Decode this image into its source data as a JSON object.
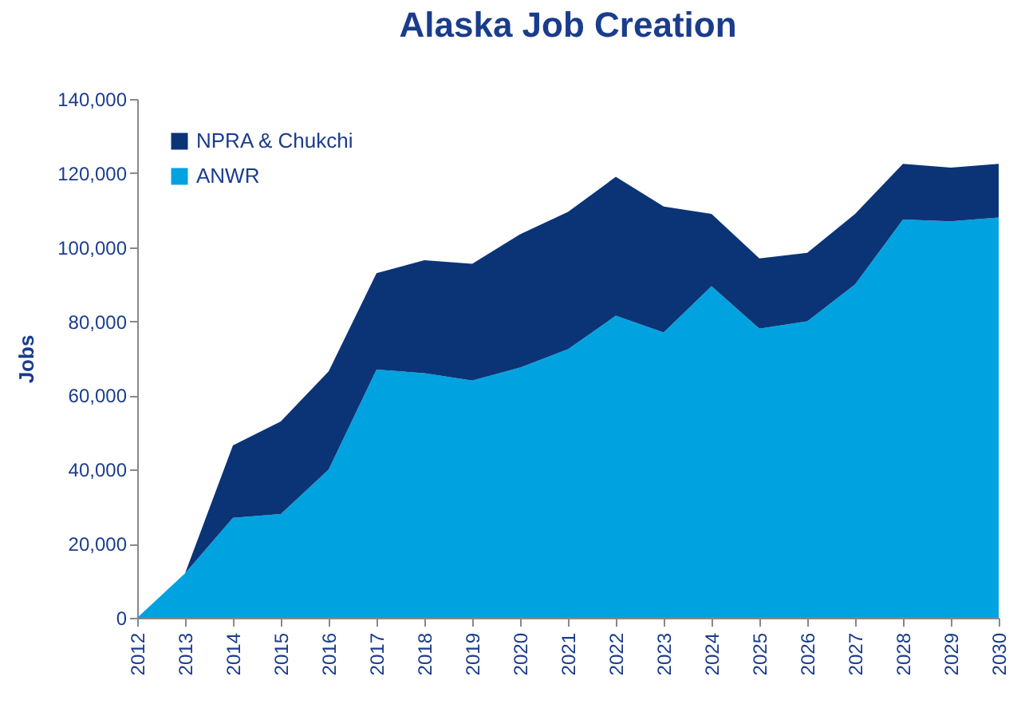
{
  "chart_data": {
    "type": "area",
    "title": "Alaska Job Creation",
    "ylabel": "Jobs",
    "stacked": true,
    "legend": "top left",
    "grid": false,
    "categories": [
      "2012",
      "2013",
      "2014",
      "2015",
      "2016",
      "2017",
      "2018",
      "2019",
      "2020",
      "2021",
      "2022",
      "2023",
      "2024",
      "2025",
      "2026",
      "2027",
      "2028",
      "2029",
      "2030"
    ],
    "ylim": [
      0,
      140000
    ],
    "yticks": [
      0,
      {
        "value": 20000,
        "label": "20,000"
      },
      {
        "value": 40000,
        "label": "40,000"
      },
      {
        "value": 60000,
        "label": "60,000"
      },
      {
        "value": 80000,
        "label": "80,000"
      },
      {
        "value": 100000,
        "label": "100,000"
      },
      {
        "value": 120000,
        "label": "120,000"
      },
      {
        "value": 140000,
        "label": "140,000"
      }
    ],
    "series": [
      {
        "name": "ANWR",
        "color": "#00a3e0",
        "values": [
          0,
          12000,
          27000,
          28000,
          40000,
          67000,
          66000,
          64000,
          67500,
          72500,
          81500,
          77000,
          89500,
          78000,
          80000,
          90000,
          107500,
          107000,
          108000
        ]
      },
      {
        "name": "NPRA & Chukchi",
        "color": "#0b3477",
        "values": [
          0,
          0,
          19500,
          25000,
          26500,
          26000,
          30500,
          31500,
          36000,
          37000,
          37500,
          34000,
          19500,
          19000,
          18500,
          19000,
          15000,
          14500,
          14500
        ]
      }
    ]
  }
}
